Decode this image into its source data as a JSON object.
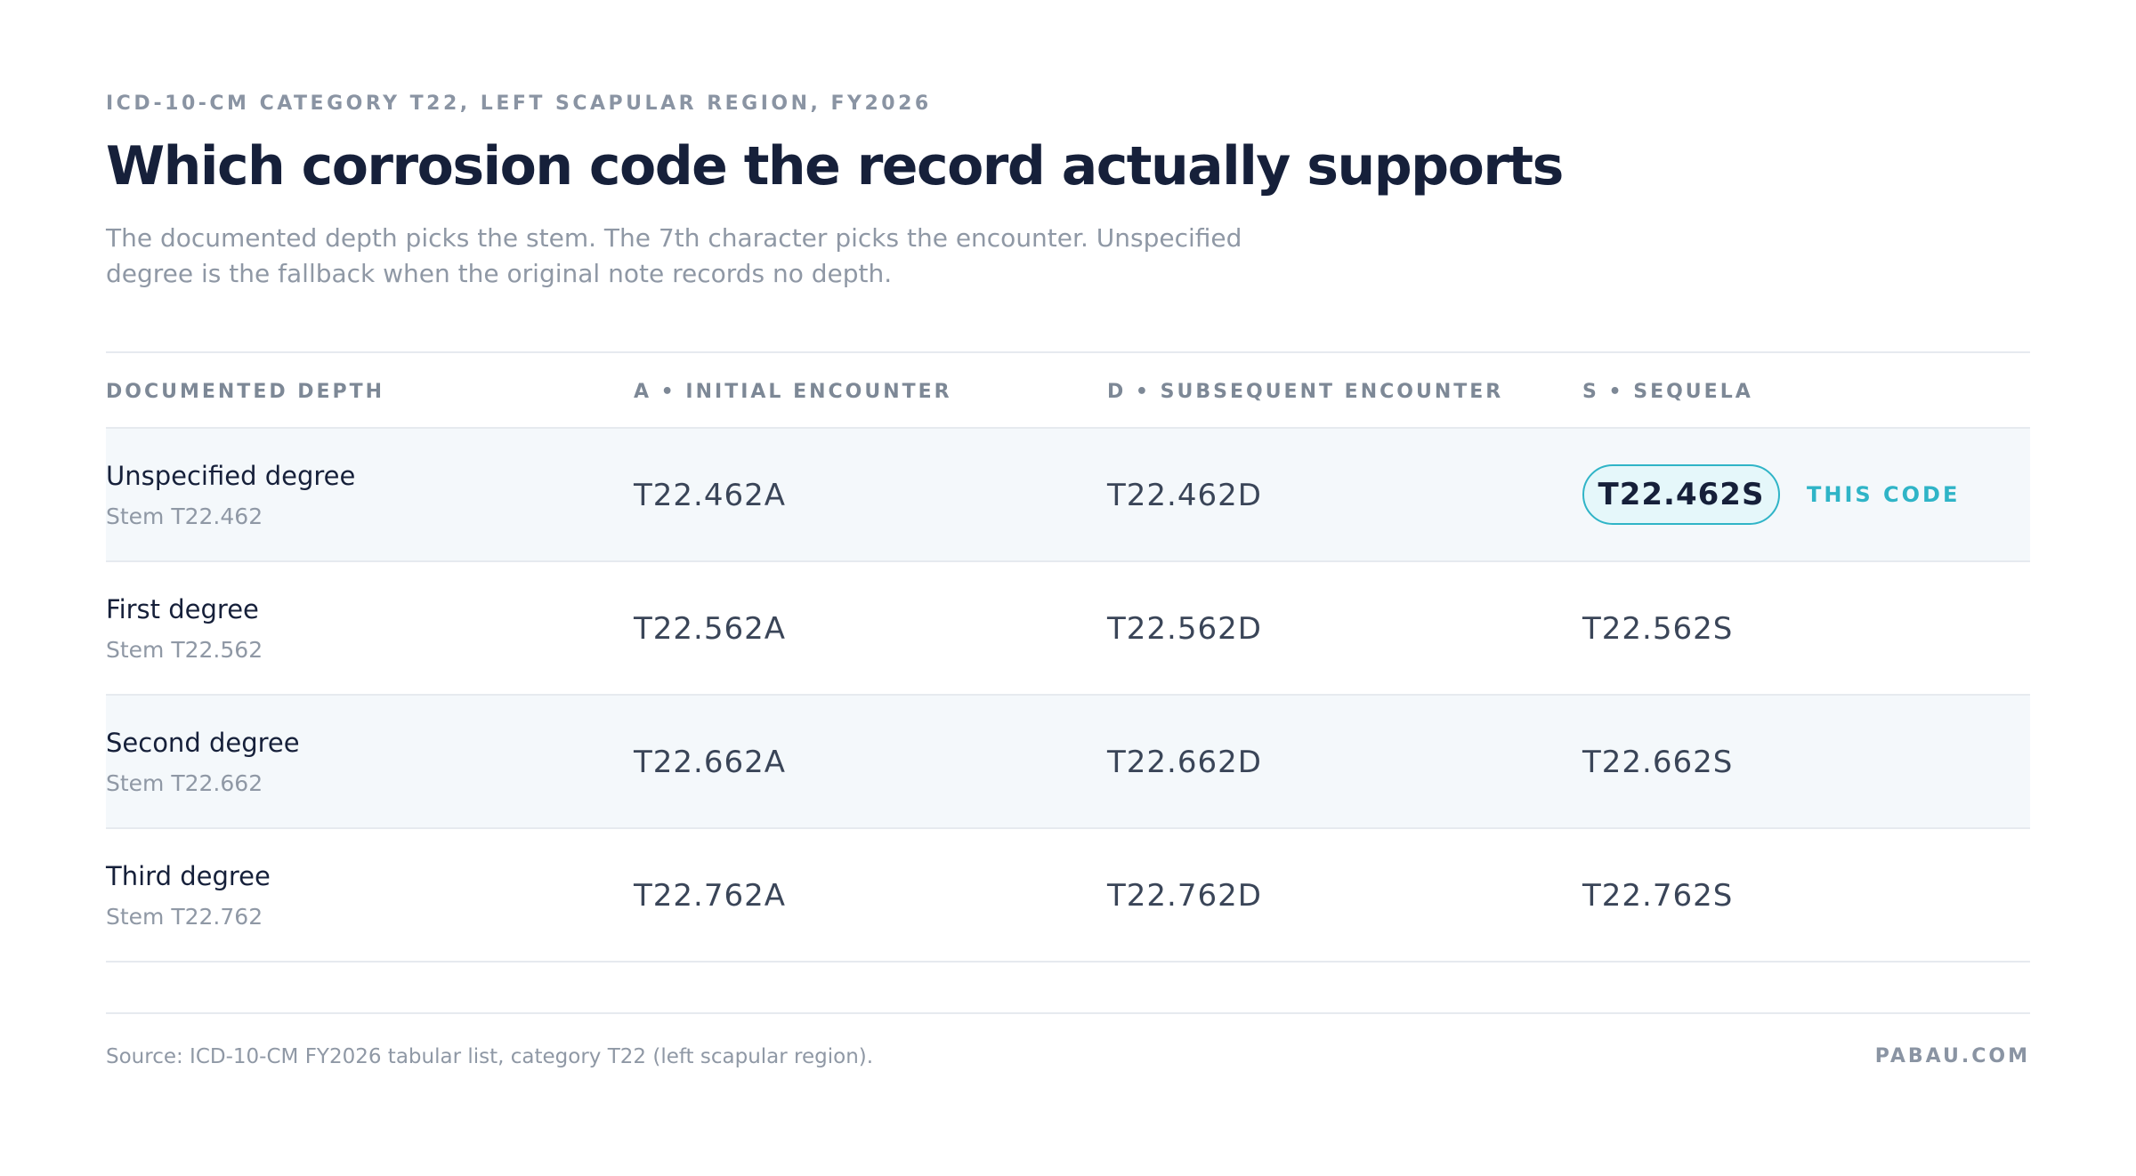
{
  "header": {
    "eyebrow": "ICD-10-CM CATEGORY T22, LEFT SCAPULAR REGION, FY2026",
    "title": "Which corrosion code the record actually supports",
    "subtitle": "The documented depth picks the stem. The 7th character picks the encounter. Unspecified degree is the fallback when the original note records no depth."
  },
  "table": {
    "columns": [
      "DOCUMENTED DEPTH",
      "A • INITIAL ENCOUNTER",
      "D • SUBSEQUENT ENCOUNTER",
      "S • SEQUELA"
    ],
    "rows": [
      {
        "label": "Unspecified degree",
        "stem": "Stem T22.462",
        "cells": [
          {
            "code": "T22.462A"
          },
          {
            "code": "T22.462D"
          },
          {
            "code": "T22.462S",
            "badge": "THIS CODE"
          }
        ]
      },
      {
        "label": "First degree",
        "stem": "Stem T22.562",
        "cells": [
          {
            "code": "T22.562A"
          },
          {
            "code": "T22.562D"
          },
          {
            "code": "T22.562S"
          }
        ]
      },
      {
        "label": "Second degree",
        "stem": "Stem T22.662",
        "cells": [
          {
            "code": "T22.662A"
          },
          {
            "code": "T22.662D"
          },
          {
            "code": "T22.662S"
          }
        ]
      },
      {
        "label": "Third degree",
        "stem": "Stem T22.762",
        "cells": [
          {
            "code": "T22.762A"
          },
          {
            "code": "T22.762D"
          },
          {
            "code": "T22.762S"
          }
        ]
      }
    ]
  },
  "footer": {
    "source": "Source: ICD-10-CM FY2026 tabular list, category T22 (left scapular region).",
    "brand": "PABAU.COM"
  }
}
